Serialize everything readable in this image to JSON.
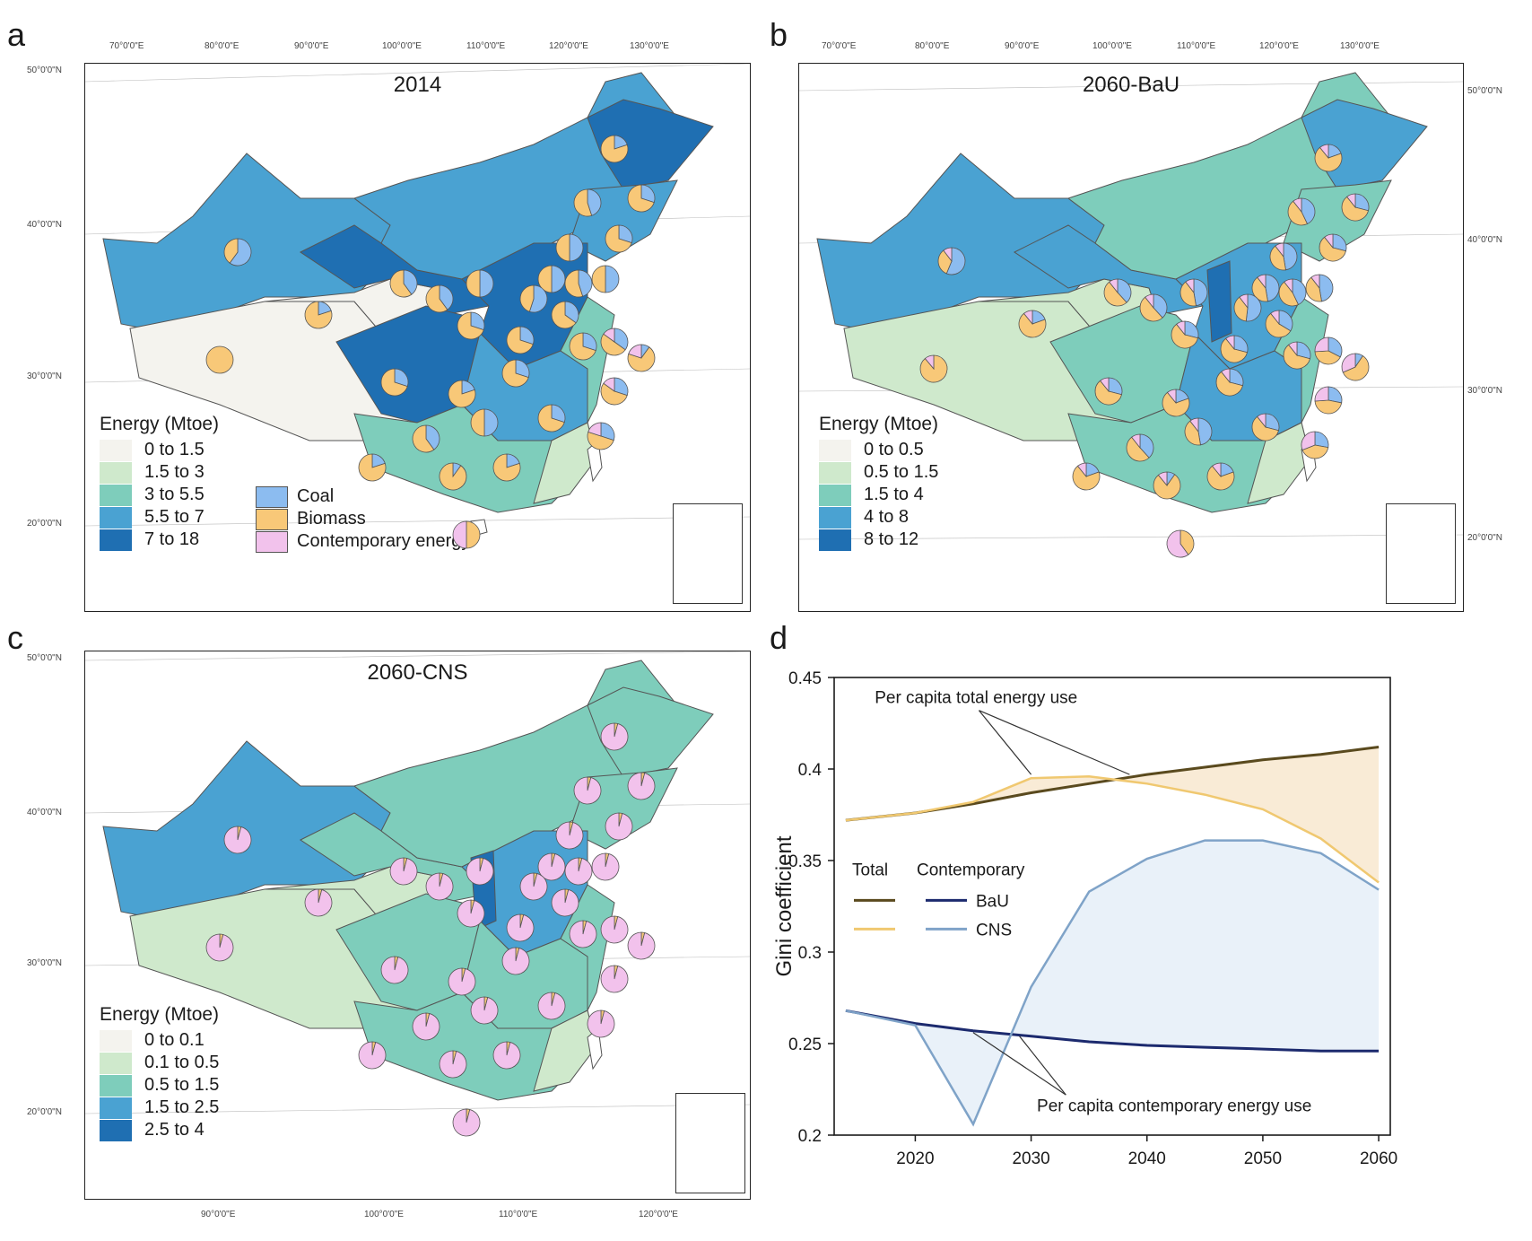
{
  "panels": {
    "a": {
      "letter": "a",
      "title": "2014",
      "legend_title": "Energy (Mtoe)",
      "legend_items": [
        "0 to 1.5",
        "1.5 to 3",
        "3 to 5.5",
        "5.5 to 7",
        "7 to 18"
      ],
      "type_legend": [
        "Coal",
        "Biomass",
        "Contemporary energy"
      ],
      "top_ticks": [
        "70°0'0\"E",
        "80°0'0\"E",
        "90°0'0\"E",
        "100°0'0\"E",
        "110°0'0\"E",
        "120°0'0\"E",
        "130°0'0\"E"
      ],
      "left_ticks": [
        "50°0'0\"N",
        "40°0'0\"N",
        "30°0'0\"N",
        "20°0'0\"N"
      ]
    },
    "b": {
      "letter": "b",
      "title": "2060-BaU",
      "legend_title": "Energy (Mtoe)",
      "legend_items": [
        "0 to 0.5",
        "0.5 to 1.5",
        "1.5 to 4",
        "4 to 8",
        "8 to 12"
      ],
      "top_ticks": [
        "70°0'0\"E",
        "80°0'0\"E",
        "90°0'0\"E",
        "100°0'0\"E",
        "110°0'0\"E",
        "120°0'0\"E",
        "130°0'0\"E"
      ],
      "right_ticks": [
        "50°0'0\"N",
        "40°0'0\"N",
        "30°0'0\"N",
        "20°0'0\"N"
      ]
    },
    "c": {
      "letter": "c",
      "title": "2060-CNS",
      "legend_title": "Energy (Mtoe)",
      "legend_items": [
        "0 to 0.1",
        "0.1 to 0.5",
        "0.5 to 1.5",
        "1.5 to 2.5",
        "2.5 to 4"
      ],
      "left_ticks": [
        "50°0'0\"N",
        "40°0'0\"N",
        "30°0'0\"N",
        "20°0'0\"N"
      ],
      "bottom_ticks": [
        "90°0'0\"E",
        "100°0'0\"E",
        "110°0'0\"E",
        "120°0'0\"E"
      ]
    },
    "d": {
      "letter": "d"
    }
  },
  "colors": {
    "class1": "#f4f3ee",
    "class2": "#cfe9cc",
    "class3": "#7ecdbb",
    "class4": "#4aa2d2",
    "class5": "#1f6fb2",
    "coal": "#8cbcf0",
    "biomass": "#f8c878",
    "contemporary": "#f2c2ec",
    "total_bau": "#5a4a1e",
    "total_cns": "#f0c870",
    "cont_bau": "#1c2a6e",
    "cont_cns": "#7fa3c8"
  },
  "chart_data": {
    "type": "line",
    "title": "",
    "xlabel": "",
    "ylabel": "Gini coefficient",
    "xlim": [
      2013,
      2061
    ],
    "ylim": [
      0.2,
      0.45
    ],
    "xticks": [
      2020,
      2030,
      2040,
      2050,
      2060
    ],
    "yticks": [
      0.2,
      0.25,
      0.3,
      0.35,
      0.4,
      0.45
    ],
    "ytick_labels": [
      "0.2",
      "0.25",
      "0.3",
      "0.35",
      "0.4",
      "0.45"
    ],
    "legend": {
      "header_total": "Total",
      "header_contemporary": "Contemporary",
      "bau": "BaU",
      "cns": "CNS",
      "placement": "center-left"
    },
    "annotations": {
      "total": "Per capita total energy use",
      "contemporary": "Per capita contemporary energy use"
    },
    "series": [
      {
        "name": "Total BaU",
        "x": [
          2014,
          2020,
          2025,
          2030,
          2035,
          2040,
          2045,
          2050,
          2055,
          2060
        ],
        "values": [
          0.372,
          0.376,
          0.381,
          0.387,
          0.392,
          0.397,
          0.401,
          0.405,
          0.408,
          0.412
        ]
      },
      {
        "name": "Total CNS",
        "x": [
          2014,
          2020,
          2025,
          2030,
          2035,
          2040,
          2045,
          2050,
          2055,
          2060
        ],
        "values": [
          0.372,
          0.376,
          0.382,
          0.395,
          0.396,
          0.392,
          0.386,
          0.378,
          0.362,
          0.338
        ]
      },
      {
        "name": "Contemporary BaU",
        "x": [
          2014,
          2020,
          2025,
          2030,
          2035,
          2040,
          2045,
          2050,
          2055,
          2060
        ],
        "values": [
          0.268,
          0.261,
          0.257,
          0.254,
          0.251,
          0.249,
          0.248,
          0.247,
          0.246,
          0.246
        ]
      },
      {
        "name": "Contemporary CNS",
        "x": [
          2014,
          2020,
          2025,
          2030,
          2035,
          2040,
          2045,
          2050,
          2055,
          2060
        ],
        "values": [
          0.268,
          0.26,
          0.206,
          0.281,
          0.333,
          0.351,
          0.361,
          0.361,
          0.354,
          0.334
        ]
      }
    ]
  }
}
